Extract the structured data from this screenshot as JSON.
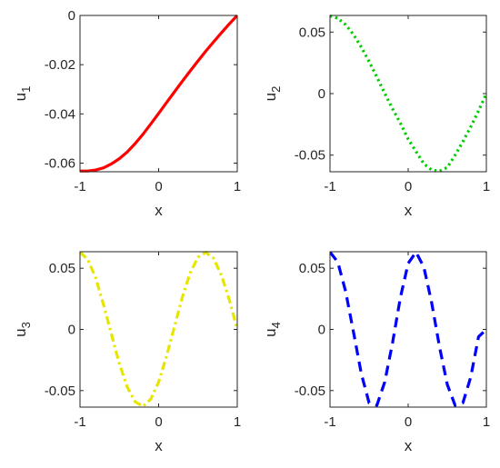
{
  "chart_data": [
    {
      "type": "line",
      "xlabel": "x",
      "ylabel": "u",
      "ylabel_sub": "1",
      "xlim": [
        -1,
        1
      ],
      "ylim": [
        -0.0635,
        0
      ],
      "xticks": [
        -1,
        0,
        1
      ],
      "xtick_labels": [
        "-1",
        "0",
        "1"
      ],
      "yticks": [
        0,
        -0.02,
        -0.04,
        -0.06
      ],
      "ytick_labels": [
        "0",
        "-0.02",
        "-0.04",
        "-0.06"
      ],
      "grid": false,
      "series": [
        {
          "color": "#ff0000",
          "dash": "solid",
          "x": [
            -1.0,
            -0.9,
            -0.8,
            -0.7,
            -0.6,
            -0.5,
            -0.4,
            -0.3,
            -0.2,
            -0.1,
            0.0,
            0.1,
            0.2,
            0.3,
            0.4,
            0.5,
            0.6,
            0.7,
            0.8,
            0.9,
            1.0
          ],
          "y": [
            -0.0632,
            -0.0632,
            -0.0628,
            -0.0619,
            -0.0603,
            -0.0582,
            -0.0555,
            -0.0521,
            -0.0483,
            -0.0441,
            -0.0398,
            -0.0354,
            -0.0311,
            -0.0268,
            -0.0226,
            -0.0185,
            -0.0145,
            -0.0107,
            -0.007,
            -0.0034,
            0.0
          ]
        }
      ]
    },
    {
      "type": "line",
      "xlabel": "x",
      "ylabel": "u",
      "ylabel_sub": "2",
      "xlim": [
        -1,
        1
      ],
      "ylim": [
        -0.0635,
        0.0635
      ],
      "xticks": [
        -1,
        0,
        1
      ],
      "xtick_labels": [
        "-1",
        "0",
        "1"
      ],
      "yticks": [
        0.05,
        0,
        -0.05
      ],
      "ytick_labels": [
        "0.05",
        "0",
        "-0.05"
      ],
      "grid": false,
      "series": [
        {
          "color": "#00cc00",
          "dash": "dotted",
          "x": [
            -1.0,
            -0.9,
            -0.8,
            -0.7,
            -0.6,
            -0.5,
            -0.4,
            -0.3,
            -0.2,
            -0.1,
            0.0,
            0.1,
            0.2,
            0.3,
            0.4,
            0.5,
            0.6,
            0.7,
            0.8,
            0.9,
            1.0
          ],
          "y": [
            0.0632,
            0.0612,
            0.056,
            0.048,
            0.0378,
            0.026,
            0.0134,
            0.0002,
            -0.0124,
            -0.024,
            -0.037,
            -0.047,
            -0.057,
            -0.062,
            -0.063,
            -0.06,
            -0.05,
            -0.039,
            -0.027,
            -0.014,
            0.0
          ]
        }
      ]
    },
    {
      "type": "line",
      "xlabel": "x",
      "ylabel": "u",
      "ylabel_sub": "3",
      "xlim": [
        -1,
        1
      ],
      "ylim": [
        -0.0635,
        0.0635
      ],
      "xticks": [
        -1,
        0,
        1
      ],
      "xtick_labels": [
        "-1",
        "0",
        "1"
      ],
      "yticks": [
        0.05,
        0,
        -0.05
      ],
      "ytick_labels": [
        "0.05",
        "0",
        "-0.05"
      ],
      "grid": false,
      "series": [
        {
          "color": "#e6e600",
          "dash": "dashdot",
          "x": [
            -1.0,
            -0.9,
            -0.8,
            -0.7,
            -0.6,
            -0.5,
            -0.4,
            -0.3,
            -0.2,
            -0.1,
            0.0,
            0.1,
            0.2,
            0.3,
            0.4,
            0.5,
            0.6,
            0.7,
            0.8,
            0.9,
            1.0
          ],
          "y": [
            0.0632,
            0.057,
            0.042,
            0.02,
            -0.004,
            -0.028,
            -0.047,
            -0.059,
            -0.063,
            -0.057,
            -0.043,
            -0.022,
            0.002,
            0.026,
            0.046,
            0.059,
            0.063,
            0.058,
            0.044,
            0.024,
            0.0
          ]
        }
      ]
    },
    {
      "type": "line",
      "xlabel": "x",
      "ylabel": "u",
      "ylabel_sub": "4",
      "xlim": [
        -1,
        1
      ],
      "ylim": [
        -0.0635,
        0.0635
      ],
      "xticks": [
        -1,
        0,
        1
      ],
      "xtick_labels": [
        "-1",
        "0",
        "1"
      ],
      "yticks": [
        0.05,
        0,
        -0.05
      ],
      "ytick_labels": [
        "0.05",
        "0",
        "-0.05"
      ],
      "grid": false,
      "series": [
        {
          "color": "#0000ff",
          "dash": "dashed",
          "x": [
            -1.0,
            -0.9,
            -0.8,
            -0.7,
            -0.6,
            -0.5,
            -0.4,
            -0.3,
            -0.2,
            -0.1,
            0.0,
            0.1,
            0.2,
            0.3,
            0.4,
            0.5,
            0.6,
            0.7,
            0.8,
            0.9,
            1.0
          ],
          "y": [
            0.0632,
            0.055,
            0.031,
            -0.002,
            -0.036,
            -0.06,
            -0.062,
            -0.043,
            -0.011,
            0.026,
            0.054,
            0.0632,
            0.051,
            0.022,
            -0.014,
            -0.045,
            -0.062,
            -0.06,
            -0.039,
            -0.006,
            0.0
          ]
        }
      ]
    }
  ]
}
